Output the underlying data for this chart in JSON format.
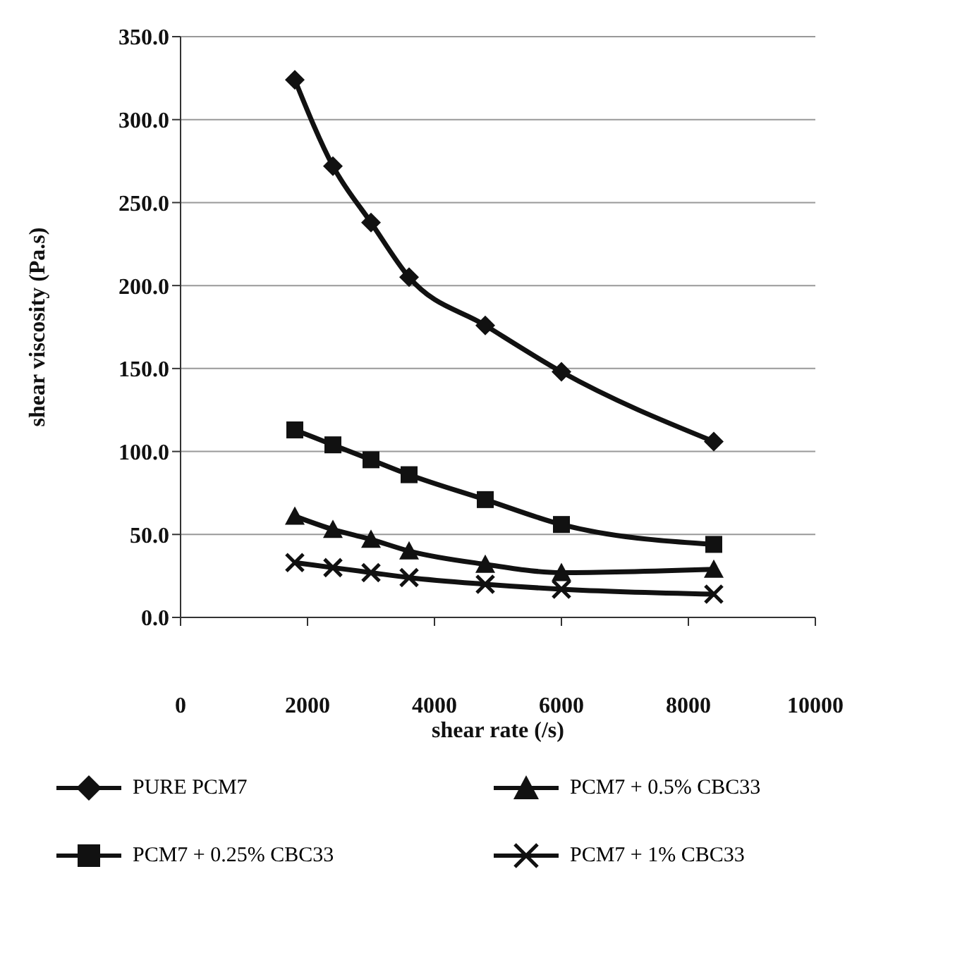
{
  "chart_data": {
    "type": "line",
    "xlabel": "shear rate (/s)",
    "ylabel": "shear viscosity (Pa.s)",
    "x": [
      1800,
      2400,
      3000,
      3600,
      4800,
      6000,
      8400
    ],
    "series": [
      {
        "name": "PURE PCM7",
        "color": "#111111",
        "marker": "diamond",
        "values": [
          324,
          272,
          238,
          205,
          176,
          148,
          106
        ]
      },
      {
        "name": "PCM7 + 0.5% CBC33",
        "color": "#111111",
        "marker": "triangle",
        "values": [
          61,
          53,
          47,
          40,
          32,
          27,
          29
        ]
      },
      {
        "name": "PCM7 + 0.25% CBC33",
        "color": "#111111",
        "marker": "square",
        "values": [
          113,
          104,
          95,
          86,
          71,
          56,
          44
        ]
      },
      {
        "name": "PCM7 + 1% CBC33",
        "color": "#111111",
        "marker": "cross",
        "values": [
          33,
          30,
          27,
          24,
          20,
          17,
          14
        ]
      }
    ],
    "xlim": [
      0,
      10000
    ],
    "xticks": [
      0,
      2000,
      4000,
      6000,
      8000,
      10000
    ],
    "ylim": [
      0,
      350
    ],
    "yticks": [
      {
        "value": 0,
        "label": "0.0"
      },
      {
        "value": 50,
        "label": "50.0"
      },
      {
        "value": 100,
        "label": "100.0"
      },
      {
        "value": 150,
        "label": "150.0"
      },
      {
        "value": 200,
        "label": "200.0"
      },
      {
        "value": 250,
        "label": "250.0"
      },
      {
        "value": 300,
        "label": "300.0"
      },
      {
        "value": 350,
        "label": "350.0"
      }
    ],
    "grid": "y",
    "legend": "bottom",
    "line_style": "solid"
  }
}
